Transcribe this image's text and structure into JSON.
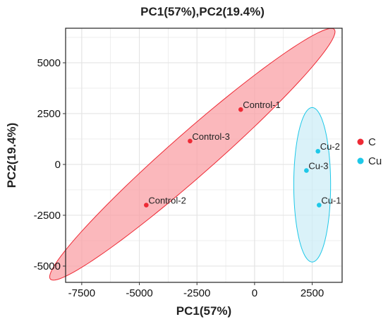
{
  "chart_data": {
    "type": "scatter",
    "title": "PC1(57%),PC2(19.4%)",
    "xlabel": "PC1(57%)",
    "ylabel": "PC2(19.4%)",
    "xlim": [
      -8200,
      3800
    ],
    "ylim": [
      -5800,
      6700
    ],
    "xticks": [
      -7500,
      -5000,
      -2500,
      0,
      2500
    ],
    "yticks": [
      -5000,
      -2500,
      0,
      2500,
      5000
    ],
    "tick_labels_x": [
      "-7500",
      "-5000",
      "-2500",
      "0",
      "2500"
    ],
    "tick_labels_y": [
      "-5000",
      "-2500",
      "0",
      "2500",
      "5000"
    ],
    "grid": true,
    "legend_position": "right",
    "series": [
      {
        "name": "C",
        "color": "#ee2a35",
        "fill": "#f9a0a5",
        "points": [
          {
            "label": "Control-1",
            "x": -600,
            "y": 2700
          },
          {
            "label": "Control-3",
            "x": -2800,
            "y": 1150
          },
          {
            "label": "Control-2",
            "x": -4700,
            "y": -2000
          }
        ],
        "ellipse": {
          "cx": -2700,
          "cy": 500,
          "rx": 8700,
          "ry": 1000,
          "angle_deg": 45
        }
      },
      {
        "name": "Cu",
        "color": "#1ec8e8",
        "fill": "#cdeef7",
        "points": [
          {
            "label": "Cu-2",
            "x": 2750,
            "y": 650
          },
          {
            "label": "Cu-3",
            "x": 2250,
            "y": -300
          },
          {
            "label": "Cu-1",
            "x": 2800,
            "y": -2000
          }
        ],
        "ellipse": {
          "cx": 2500,
          "cy": -1000,
          "rx": 800,
          "ry": 3800,
          "angle_deg": 0
        }
      }
    ]
  }
}
